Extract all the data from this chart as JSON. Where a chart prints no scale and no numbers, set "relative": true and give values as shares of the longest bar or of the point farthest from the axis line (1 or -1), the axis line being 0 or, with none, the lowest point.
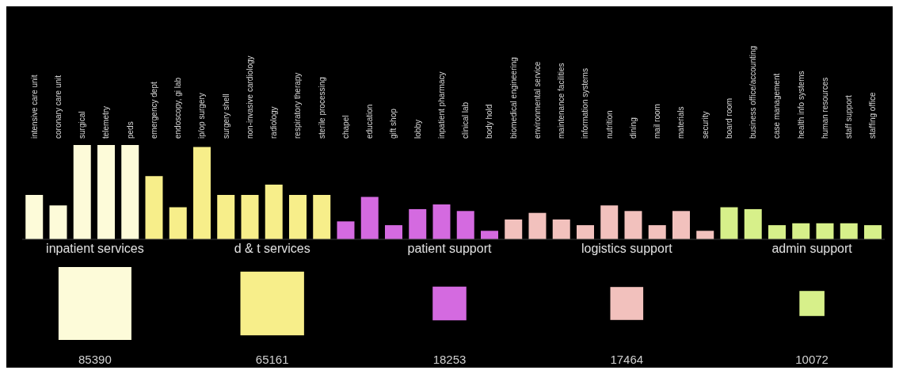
{
  "chart_data": [
    {
      "type": "bar",
      "relative": true,
      "categories": [
        "intensive care unit",
        "coronary care unit",
        "surgical",
        "telemetry",
        "peds",
        "emergency dept",
        "endoscopy, gi lab",
        "ip/op surgery",
        "surgery shell",
        "non-invasive cardiology",
        "radiology",
        "respiratory therapy",
        "sterile processing",
        "chapel",
        "education",
        "gift shop",
        "lobby",
        "inpatient pharmacy",
        "clinical lab",
        "body hold",
        "biomedical engineering",
        "environmental service",
        "maintenance facilities",
        "information systems",
        "nutrition",
        "dining",
        "mail room",
        "materials",
        "security",
        "board room",
        "business office/accounting",
        "case management",
        "health info systems",
        "human resources",
        "staff support",
        "staffing office"
      ],
      "values": [
        0.47,
        0.36,
        1,
        1,
        1,
        0.67,
        0.34,
        0.98,
        0.47,
        0.47,
        0.58,
        0.47,
        0.47,
        0.19,
        0.45,
        0.15,
        0.32,
        0.37,
        0.3,
        0.09,
        0.21,
        0.28,
        0.21,
        0.15,
        0.36,
        0.3,
        0.15,
        0.3,
        0.09,
        0.34,
        0.32,
        0.15,
        0.17,
        0.17,
        0.17,
        0.15
      ],
      "colors": [
        "#fdfbd9",
        "#fdfbd9",
        "#fdfbd9",
        "#fdfbd9",
        "#fdfbd9",
        "#f7ee8a",
        "#f7ee8a",
        "#f7ee8a",
        "#f7ee8a",
        "#f7ee8a",
        "#f7ee8a",
        "#f7ee8a",
        "#f7ee8a",
        "#d46ae0",
        "#d46ae0",
        "#d46ae0",
        "#d46ae0",
        "#d46ae0",
        "#d46ae0",
        "#d46ae0",
        "#f2c1bd",
        "#f2c1bd",
        "#f2c1bd",
        "#f2c1bd",
        "#f2c1bd",
        "#f2c1bd",
        "#f2c1bd",
        "#f2c1bd",
        "#f2c1bd",
        "#d7f08a",
        "#d7f08a",
        "#d7f08a",
        "#d7f08a",
        "#d7f08a",
        "#d7f08a",
        "#d7f08a"
      ]
    },
    {
      "type": "other",
      "categories": [
        "inpatient services",
        "d & t  services",
        "patient support",
        "logistics support",
        "admin support"
      ],
      "values": [
        85390,
        65161,
        18253,
        17464,
        10072
      ],
      "colors": [
        "#fdfbd9",
        "#f7ee8a",
        "#d46ae0",
        "#f2c1bd",
        "#d7f08a"
      ],
      "data_labels": true
    }
  ]
}
